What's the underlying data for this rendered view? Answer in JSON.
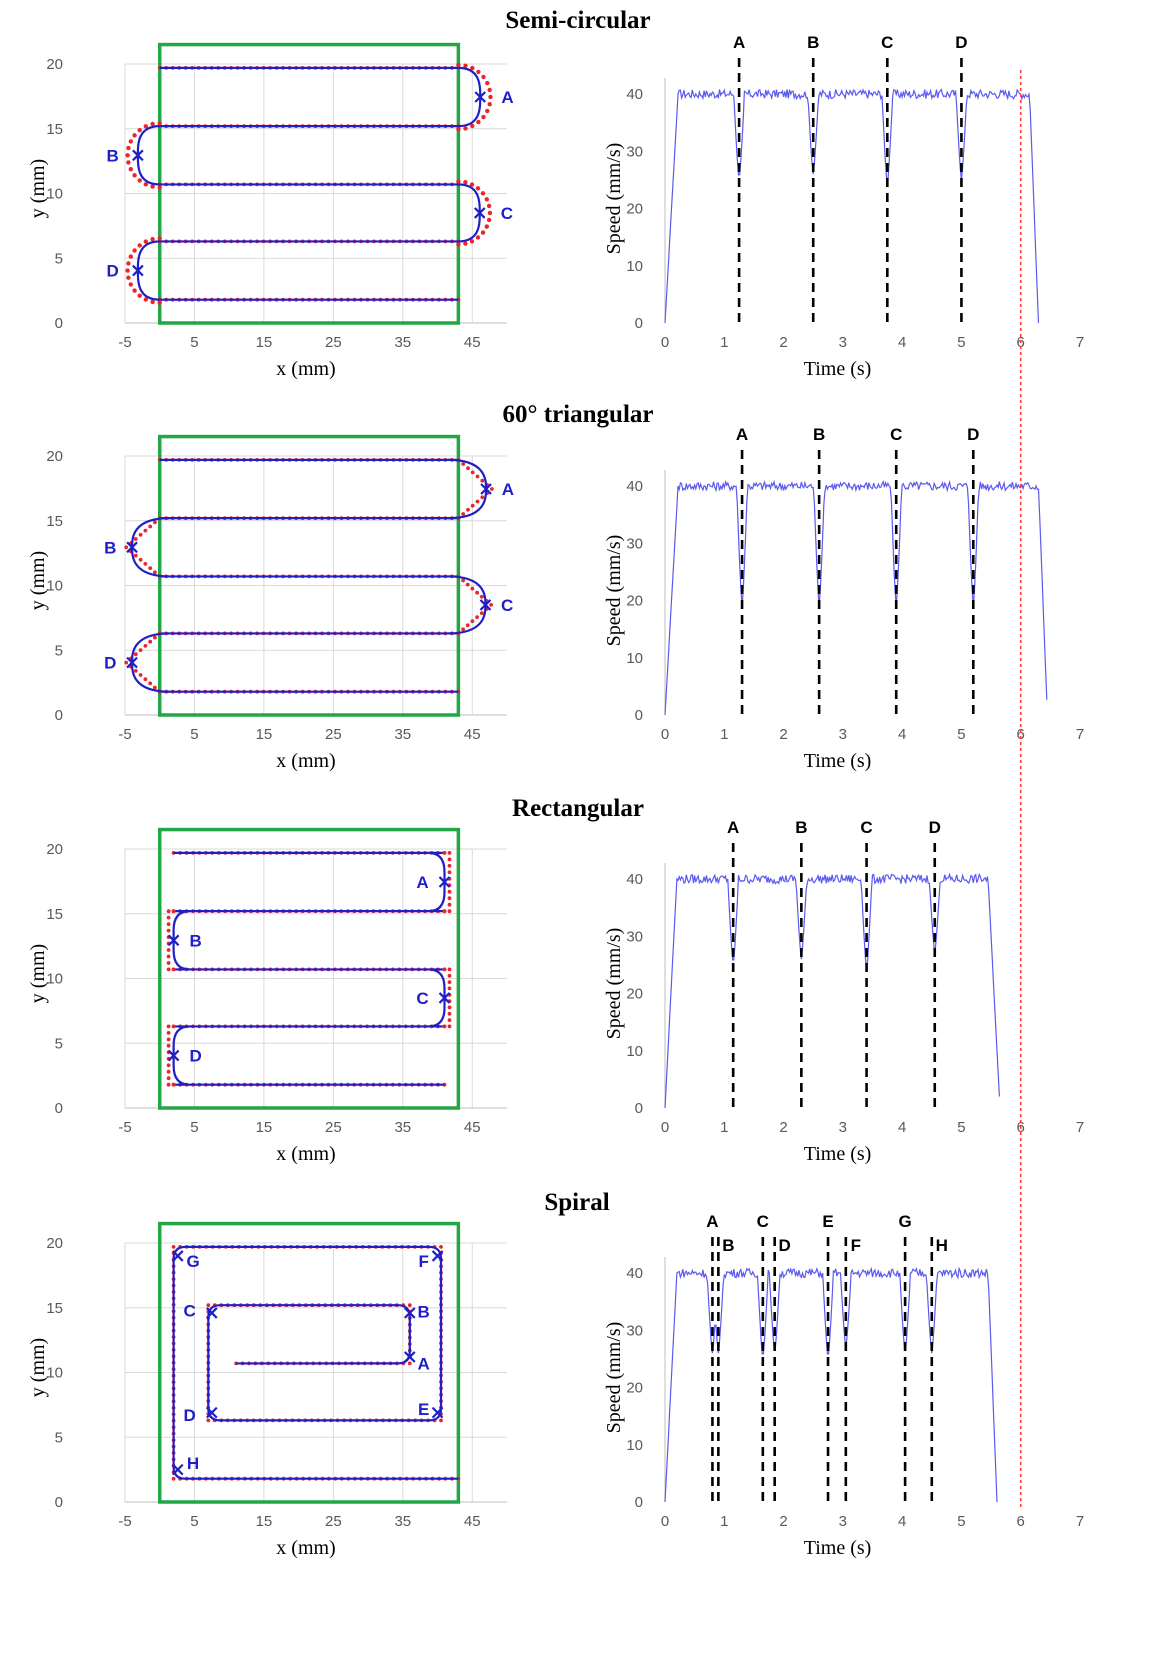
{
  "figure": {
    "colors": {
      "path": "#1f1fc8",
      "planned": "#e8262b",
      "boundary": "#22a646",
      "speed": "#5a5aef",
      "event_line": "#000000",
      "limit_line": "#ff3b3b",
      "grid": "#d9d9d9"
    }
  },
  "chart_data": [
    {
      "type": "line",
      "title": "Semi-circular",
      "xlabel": "x (mm)",
      "ylabel": "y (mm)",
      "xlim": [
        -5,
        50
      ],
      "ylim": [
        0,
        20
      ],
      "xticks": [
        -5,
        5,
        15,
        25,
        35,
        45
      ],
      "yticks": [
        0,
        5,
        10,
        15,
        20
      ],
      "boundary_rect": {
        "x": [
          0,
          43
        ],
        "y": [
          0,
          21.5
        ]
      },
      "lines": [
        1.8,
        6.3,
        10.7,
        15.2,
        19.7
      ],
      "line_x": [
        0,
        43
      ],
      "turns": [
        {
          "label": "A",
          "shape": "semi",
          "side": "right",
          "y0": 15.2,
          "y1": 19.7,
          "x": 45,
          "y": 17.4
        },
        {
          "label": "B",
          "shape": "semi",
          "side": "left",
          "y0": 10.7,
          "y1": 15.2,
          "x": -1.5,
          "y": 12.9
        },
        {
          "label": "C",
          "shape": "semi",
          "side": "right",
          "y0": 6.3,
          "y1": 10.7,
          "x": 45,
          "y": 8.5
        },
        {
          "label": "D",
          "shape": "semi",
          "side": "left",
          "y0": 1.8,
          "y1": 6.3,
          "x": -1.5,
          "y": 4.1
        }
      ]
    },
    {
      "type": "line",
      "title": "Semi-circular",
      "xlabel": "Time (s)",
      "ylabel": "Speed (mm/s)",
      "xlim": [
        0,
        7
      ],
      "ylim": [
        0,
        40
      ],
      "xticks": [
        0,
        1,
        2,
        3,
        4,
        5,
        6,
        7
      ],
      "yticks": [
        0,
        10,
        20,
        30,
        40
      ],
      "events": [
        {
          "label": "A",
          "t": 1.25,
          "min": 25
        },
        {
          "label": "B",
          "t": 2.5,
          "min": 26
        },
        {
          "label": "C",
          "t": 3.75,
          "min": 24
        },
        {
          "label": "D",
          "t": 5.0,
          "min": 25
        }
      ],
      "ramp_up_end": 0.22,
      "stop_start": 6.15,
      "end_time": 6.3,
      "limit_time": 6.0
    },
    {
      "type": "line",
      "title": "60° triangular",
      "xlabel": "x (mm)",
      "ylabel": "y (mm)",
      "xlim": [
        -5,
        50
      ],
      "ylim": [
        0,
        20
      ],
      "xticks": [
        -5,
        5,
        15,
        25,
        35,
        45
      ],
      "yticks": [
        0,
        5,
        10,
        15,
        20
      ],
      "boundary_rect": {
        "x": [
          0,
          43
        ],
        "y": [
          0,
          21.5
        ]
      },
      "lines": [
        1.8,
        6.3,
        10.7,
        15.2,
        19.7
      ],
      "line_x": [
        0,
        43
      ],
      "turns": [
        {
          "label": "A",
          "shape": "tri",
          "side": "right",
          "y0": 15.2,
          "y1": 19.7,
          "x": 45.8,
          "y": 17.4
        },
        {
          "label": "B",
          "shape": "tri",
          "side": "left",
          "y0": 10.7,
          "y1": 15.2,
          "x": -2.3,
          "y": 12.9
        },
        {
          "label": "C",
          "shape": "tri",
          "side": "right",
          "y0": 6.3,
          "y1": 10.7,
          "x": 45.8,
          "y": 8.5
        },
        {
          "label": "D",
          "shape": "tri",
          "side": "left",
          "y0": 1.8,
          "y1": 6.3,
          "x": -2.3,
          "y": 4.1
        }
      ]
    },
    {
      "type": "line",
      "title": "60° triangular",
      "xlabel": "Time (s)",
      "ylabel": "Speed (mm/s)",
      "xlim": [
        0,
        7
      ],
      "ylim": [
        0,
        40
      ],
      "xticks": [
        0,
        1,
        2,
        3,
        4,
        5,
        6,
        7
      ],
      "yticks": [
        0,
        10,
        20,
        30,
        40
      ],
      "events": [
        {
          "label": "A",
          "t": 1.3,
          "min": 19
        },
        {
          "label": "B",
          "t": 2.6,
          "min": 19
        },
        {
          "label": "C",
          "t": 3.9,
          "min": 19
        },
        {
          "label": "D",
          "t": 5.2,
          "min": 19
        }
      ],
      "ramp_up_end": 0.22,
      "stop_start": 6.3,
      "end_time": 6.45,
      "limit_time": 6.0
    },
    {
      "type": "line",
      "title": "Rectangular",
      "xlabel": "x (mm)",
      "ylabel": "y (mm)",
      "xlim": [
        -5,
        50
      ],
      "ylim": [
        0,
        20
      ],
      "xticks": [
        -5,
        5,
        15,
        25,
        35,
        45
      ],
      "yticks": [
        0,
        5,
        10,
        15,
        20
      ],
      "boundary_rect": {
        "x": [
          0,
          43
        ],
        "y": [
          0,
          21.5
        ]
      },
      "lines": [
        1.8,
        6.3,
        10.7,
        15.2,
        19.7
      ],
      "line_x": [
        2,
        41
      ],
      "turns": [
        {
          "label": "A",
          "shape": "rect",
          "side": "right",
          "y0": 15.2,
          "y1": 19.7,
          "x": 41,
          "y": 17.4
        },
        {
          "label": "B",
          "shape": "rect",
          "side": "left",
          "y0": 10.7,
          "y1": 15.2,
          "x": 2,
          "y": 12.9
        },
        {
          "label": "C",
          "shape": "rect",
          "side": "right",
          "y0": 6.3,
          "y1": 10.7,
          "x": 41,
          "y": 8.5
        },
        {
          "label": "D",
          "shape": "rect",
          "side": "left",
          "y0": 1.8,
          "y1": 6.3,
          "x": 2,
          "y": 4.1
        }
      ]
    },
    {
      "type": "line",
      "title": "Rectangular",
      "xlabel": "Time (s)",
      "ylabel": "Speed (mm/s)",
      "xlim": [
        0,
        7
      ],
      "ylim": [
        0,
        40
      ],
      "xticks": [
        0,
        1,
        2,
        3,
        4,
        5,
        6,
        7
      ],
      "yticks": [
        0,
        10,
        20,
        30,
        40
      ],
      "events": [
        {
          "label": "A",
          "t": 1.15,
          "min": 25
        },
        {
          "label": "B",
          "t": 2.3,
          "min": 26
        },
        {
          "label": "C",
          "t": 3.4,
          "min": 24
        },
        {
          "label": "D",
          "t": 4.55,
          "min": 27
        }
      ],
      "ramp_up_end": 0.2,
      "stop_start": 5.45,
      "end_time": 5.65,
      "limit_time": 6.0
    },
    {
      "type": "line",
      "title": "Spiral",
      "xlabel": "x (mm)",
      "ylabel": "y (mm)",
      "xlim": [
        -5,
        50
      ],
      "ylim": [
        0,
        20
      ],
      "xticks": [
        -5,
        5,
        15,
        25,
        35,
        45
      ],
      "yticks": [
        0,
        5,
        10,
        15,
        20
      ],
      "boundary_rect": {
        "x": [
          0,
          43
        ],
        "y": [
          0,
          21.5
        ]
      },
      "spiral": [
        [
          11,
          10.7
        ],
        [
          36,
          10.7
        ],
        [
          36,
          15.2
        ],
        [
          7,
          15.2
        ],
        [
          7,
          6.3
        ],
        [
          40.5,
          6.3
        ],
        [
          40.5,
          19.7
        ],
        [
          2,
          19.7
        ],
        [
          2,
          1.8
        ],
        [
          43,
          1.8
        ]
      ],
      "points": [
        {
          "label": "A",
          "x": 36,
          "y": 11.2,
          "lx": 38,
          "ly": 10.7
        },
        {
          "label": "B",
          "x": 36,
          "y": 14.6,
          "lx": 38,
          "ly": 14.7
        },
        {
          "label": "C",
          "x": 7.5,
          "y": 14.6,
          "lx": 4.3,
          "ly": 14.8
        },
        {
          "label": "D",
          "x": 7.5,
          "y": 6.9,
          "lx": 4.3,
          "ly": 6.7
        },
        {
          "label": "E",
          "x": 40,
          "y": 6.9,
          "lx": 38,
          "ly": 7.2
        },
        {
          "label": "F",
          "x": 40,
          "y": 19.0,
          "lx": 38,
          "ly": 18.6
        },
        {
          "label": "G",
          "x": 2.6,
          "y": 19.0,
          "lx": 4.8,
          "ly": 18.6
        },
        {
          "label": "H",
          "x": 2.6,
          "y": 2.5,
          "lx": 4.8,
          "ly": 3.0
        }
      ]
    },
    {
      "type": "line",
      "title": "Spiral",
      "xlabel": "Time (s)",
      "ylabel": "Speed (mm/s)",
      "xlim": [
        0,
        7
      ],
      "ylim": [
        0,
        40
      ],
      "xticks": [
        0,
        1,
        2,
        3,
        4,
        5,
        6,
        7
      ],
      "yticks": [
        0,
        10,
        20,
        30,
        40
      ],
      "events": [
        {
          "label": "A",
          "t": 0.8,
          "min": 26
        },
        {
          "label": "B",
          "t": 0.9,
          "min": 26
        },
        {
          "label": "C",
          "t": 1.65,
          "min": 25
        },
        {
          "label": "D",
          "t": 1.85,
          "min": 26
        },
        {
          "label": "E",
          "t": 2.75,
          "min": 25
        },
        {
          "label": "F",
          "t": 3.05,
          "min": 27
        },
        {
          "label": "G",
          "t": 4.05,
          "min": 26
        },
        {
          "label": "H",
          "t": 4.5,
          "min": 26
        }
      ],
      "ramp_up_end": 0.2,
      "stop_start": 5.45,
      "end_time": 5.6,
      "limit_time": 6.0
    }
  ]
}
